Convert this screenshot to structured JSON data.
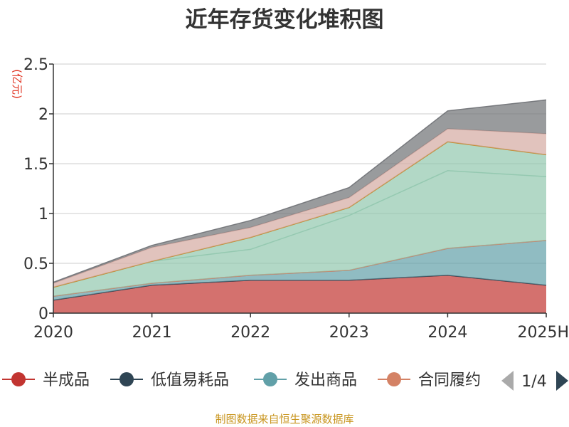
{
  "chart_data": {
    "type": "area",
    "stacked": true,
    "title": "近年存货变化堆积图",
    "unit_label": "(亿元)",
    "categories": [
      "2020",
      "2021",
      "2022",
      "2023",
      "2024",
      "2025H"
    ],
    "y_ticks": [
      "0",
      "0.5",
      "1",
      "1.5",
      "2",
      "2.5"
    ],
    "ylim": [
      0,
      2.5
    ],
    "grid": true,
    "series": [
      {
        "name": "半成品",
        "color": "#c23531",
        "values": [
          0.13,
          0.28,
          0.33,
          0.33,
          0.38,
          0.28
        ]
      },
      {
        "name": "低值易耗品",
        "color": "#2f4554",
        "values": [
          0.0,
          0.0,
          0.0,
          0.0,
          0.0,
          0.0
        ]
      },
      {
        "name": "发出商品",
        "color": "#61a0a8",
        "values": [
          0.04,
          0.02,
          0.05,
          0.1,
          0.27,
          0.45
        ]
      },
      {
        "name": "合同履约成本",
        "color": "#d48265",
        "values": [
          0.0,
          0.0,
          0.0,
          0.0,
          0.0,
          0.0
        ]
      },
      {
        "name": "",
        "color": "#91c7ae",
        "values": [
          0.09,
          0.22,
          0.26,
          0.55,
          0.78,
          0.64
        ]
      },
      {
        "name": "",
        "color": "#91c7ae",
        "values": [
          0.0,
          0.0,
          0.12,
          0.08,
          0.29,
          0.22
        ]
      },
      {
        "name": "",
        "color": "#ca8622",
        "values": [
          0.0,
          0.0,
          0.0,
          0.0,
          0.0,
          0.0
        ]
      },
      {
        "name": "",
        "color": "#d4a9a1",
        "values": [
          0.04,
          0.14,
          0.1,
          0.1,
          0.13,
          0.21
        ]
      },
      {
        "name": "",
        "color": "#6e7074",
        "values": [
          0.01,
          0.02,
          0.07,
          0.1,
          0.18,
          0.34
        ]
      }
    ],
    "legend_placement": "bottom",
    "legend_visible": [
      "半成品",
      "低值易耗品",
      "发出商品",
      "合同履约"
    ],
    "legend_page": "1/4",
    "source": "制图数据来自恒生聚源数据库"
  }
}
